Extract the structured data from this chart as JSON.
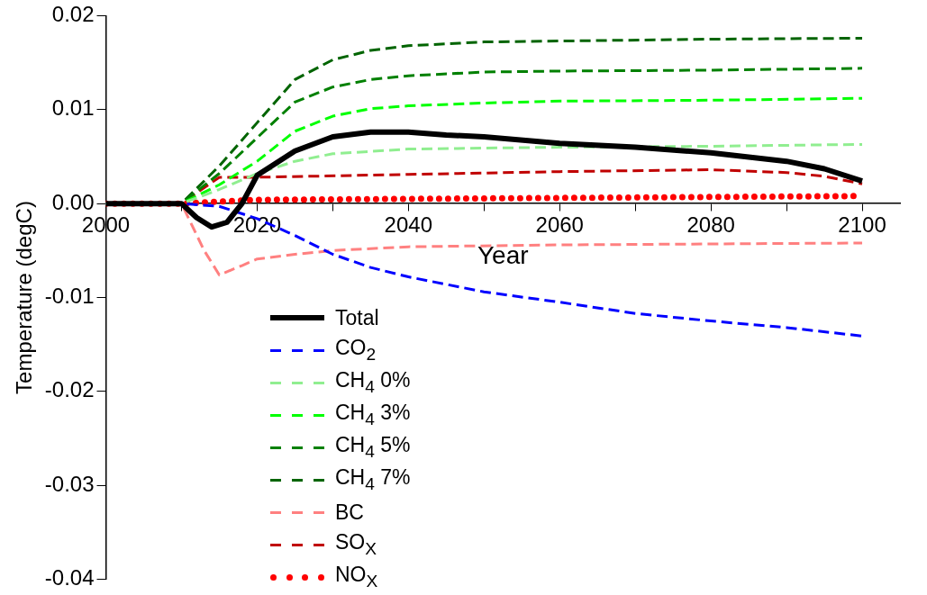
{
  "chart_data": {
    "type": "line",
    "xlabel": "Year",
    "ylabel": "Temperature (degC)",
    "xlim": [
      2000,
      2105
    ],
    "xticks": [
      2000,
      {
        "value": 2010,
        "label": null
      },
      2020,
      {
        "value": 2030,
        "label": null
      },
      2040,
      {
        "value": 2050,
        "label": null
      },
      2060,
      {
        "value": 2070,
        "label": null
      },
      2080,
      {
        "value": 2090,
        "label": null
      },
      2100
    ],
    "ylim": [
      -0.04,
      0.02
    ],
    "yticks": [
      {
        "value": -0.04,
        "label": "-0.04"
      },
      {
        "value": -0.03,
        "label": "-0.03"
      },
      {
        "value": -0.02,
        "label": "-0.02"
      },
      {
        "value": -0.01,
        "label": "-0.01"
      },
      {
        "value": 0,
        "label": "0.00"
      },
      {
        "value": 0.01,
        "label": "0.01"
      },
      {
        "value": 0.02,
        "label": "0.02"
      }
    ],
    "grid": false,
    "legend": "bottom left",
    "marker": "none",
    "series": [
      {
        "name": "Total",
        "color": "#000000",
        "line_style": "solid",
        "x": [
          2000,
          2010,
          2012,
          2014,
          2016,
          2018,
          2020,
          2025,
          2030,
          2035,
          2040,
          2045,
          2050,
          2060,
          2070,
          2080,
          2090,
          2095,
          2100
        ],
        "values": [
          0,
          0,
          -0.0015,
          -0.0025,
          -0.002,
          0,
          0.003,
          0.0056,
          0.0071,
          0.0076,
          0.0076,
          0.0073,
          0.0071,
          0.0064,
          0.006,
          0.0054,
          0.0045,
          0.0037,
          0.0024
        ]
      },
      {
        "name": "CO$_{2}$",
        "color": "#0000ff",
        "line_style": "dashed",
        "x": [
          2000,
          2010,
          2015,
          2020,
          2025,
          2030,
          2035,
          2040,
          2050,
          2060,
          2070,
          2080,
          2090,
          2100
        ],
        "values": [
          0,
          0,
          -0.0003,
          -0.0016,
          -0.0034,
          -0.0054,
          -0.0068,
          -0.0078,
          -0.0094,
          -0.0105,
          -0.0117,
          -0.0125,
          -0.0132,
          -0.0141
        ]
      },
      {
        "name": "CH$_{4}$ 0%",
        "color": "#90ee90",
        "line_style": "dashed",
        "x": [
          2000,
          2010,
          2015,
          2020,
          2025,
          2030,
          2040,
          2050,
          2060,
          2080,
          2100
        ],
        "values": [
          0,
          0,
          0.0015,
          0.0032,
          0.0045,
          0.0053,
          0.0058,
          0.0059,
          0.006,
          0.0061,
          0.0063
        ]
      },
      {
        "name": "CH$_{4}$ 3%",
        "color": "#00ff00",
        "line_style": "dashed",
        "x": [
          2000,
          2010,
          2015,
          2020,
          2025,
          2030,
          2035,
          2040,
          2050,
          2060,
          2080,
          2100
        ],
        "values": [
          0,
          0,
          0.002,
          0.0045,
          0.0077,
          0.0093,
          0.0101,
          0.0104,
          0.0107,
          0.0109,
          0.011,
          0.0112
        ]
      },
      {
        "name": "CH$_{4}$ 5%",
        "color": "#008000",
        "line_style": "dashed",
        "x": [
          2000,
          2010,
          2015,
          2020,
          2025,
          2030,
          2035,
          2040,
          2050,
          2060,
          2080,
          2100
        ],
        "values": [
          0,
          0,
          0.0032,
          0.007,
          0.0108,
          0.0124,
          0.0132,
          0.0136,
          0.014,
          0.0141,
          0.0142,
          0.0144
        ]
      },
      {
        "name": "CH$_{4}$ 7%",
        "color": "#006400",
        "line_style": "dashed",
        "x": [
          2000,
          2010,
          2015,
          2020,
          2025,
          2030,
          2035,
          2040,
          2050,
          2060,
          2080,
          2100
        ],
        "values": [
          0,
          0,
          0.004,
          0.0086,
          0.0132,
          0.0153,
          0.0163,
          0.0168,
          0.0172,
          0.0173,
          0.0175,
          0.0176
        ]
      },
      {
        "name": "BC",
        "color": "#ff8080",
        "line_style": "dashed",
        "x": [
          2000,
          2010,
          2013,
          2015,
          2018,
          2020,
          2025,
          2030,
          2040,
          2060,
          2100
        ],
        "values": [
          0,
          0,
          -0.005,
          -0.0076,
          -0.0066,
          -0.0059,
          -0.0054,
          -0.005,
          -0.0046,
          -0.0044,
          -0.0042
        ]
      },
      {
        "name": "SO$_{X}$",
        "color": "#c00000",
        "line_style": "dashed",
        "x": [
          2000,
          2010,
          2015,
          2020,
          2040,
          2060,
          2080,
          2090,
          2095,
          2100
        ],
        "values": [
          0,
          0,
          0.0028,
          0.0028,
          0.0031,
          0.0034,
          0.0036,
          0.0033,
          0.0029,
          0.0021
        ]
      },
      {
        "name": "NO$_{X}$",
        "color": "#ff0000",
        "line_style": "dotted",
        "x": [
          2000,
          2010,
          2020,
          2060,
          2100
        ],
        "values": [
          0,
          0,
          0.0004,
          0.0006,
          0.0008
        ]
      }
    ]
  }
}
